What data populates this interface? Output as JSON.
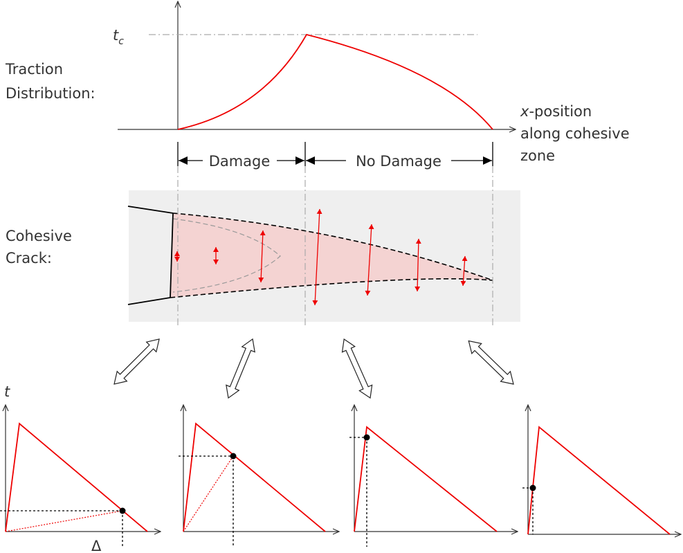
{
  "traction_label": {
    "lines": [
      "Traction",
      "Distribution:"
    ]
  },
  "tc_label": {
    "symbol": "t",
    "subscript": "c"
  },
  "x_label": {
    "variable": "x",
    "lines": [
      "-position",
      "along cohesive",
      "zone"
    ]
  },
  "zones": {
    "damage": "Damage",
    "no_damage": "No Damage"
  },
  "crack_label": {
    "lines": [
      "Cohesive",
      "Crack:"
    ]
  },
  "law_axes": {
    "y": "t",
    "x": "Δ"
  }
}
